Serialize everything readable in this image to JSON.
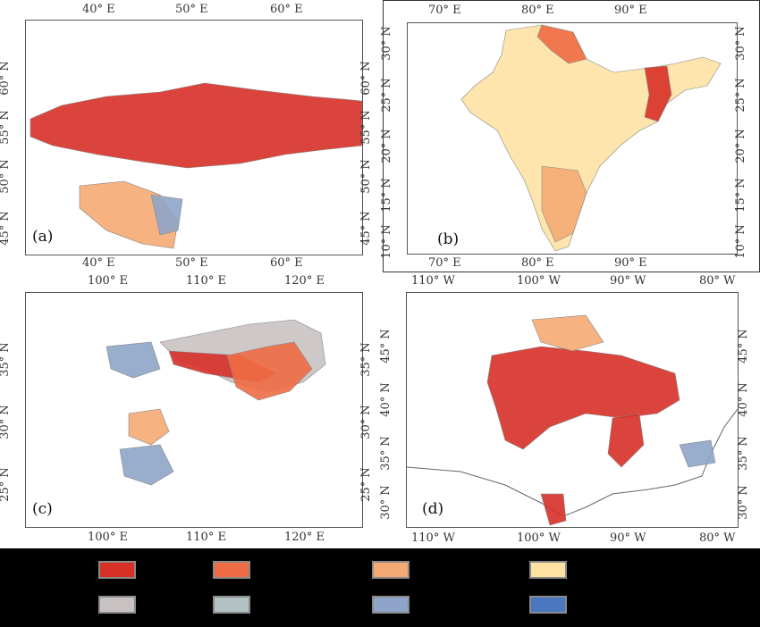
{
  "panels": [
    {
      "id": "a",
      "label": "(a)",
      "top_ticks": [
        "40° E",
        "50° E",
        "60° E"
      ],
      "bottom_ticks": [
        "40° E",
        "50° E",
        "60° E"
      ],
      "left_ticks": [
        "60° N",
        "55° N",
        "50° N",
        "45° N"
      ],
      "right_ticks": [
        "60° N",
        "55° N",
        "50° N",
        "45° N"
      ]
    },
    {
      "id": "b",
      "label": "(b)",
      "top_ticks": [
        "70° E",
        "80° E",
        "90° E"
      ],
      "bottom_ticks": [
        "70° E",
        "80° E",
        "90° E"
      ],
      "left_ticks": [
        "30° N",
        "25° N",
        "20° N",
        "15° N",
        "10° N"
      ],
      "right_ticks": [
        "30° N",
        "25° N",
        "20° N",
        "15° N",
        "10° N"
      ]
    },
    {
      "id": "c",
      "label": "(c)",
      "top_ticks": [
        "100° E",
        "110° E",
        "120° E"
      ],
      "bottom_ticks": [
        "100° E",
        "110° E",
        "120° E"
      ],
      "left_ticks": [
        "35° N",
        "30° N",
        "25° N"
      ],
      "right_ticks": [
        "35° N",
        "30° N",
        "25° N"
      ]
    },
    {
      "id": "d",
      "label": "(d)",
      "top_ticks": [
        "110° W",
        "100° W",
        "90° W",
        "80° W"
      ],
      "bottom_ticks": [
        "110° W",
        "100° W",
        "90° W",
        "80° W"
      ],
      "left_ticks": [
        "45° N",
        "40° N",
        "35° N",
        "30° N"
      ],
      "right_ticks": [
        "45° N",
        "40° N",
        "35° N",
        "30° N"
      ]
    }
  ],
  "legend_colors": [
    "#d73027",
    "#ef6b44",
    "#f5aa73",
    "#fde2a4",
    "#c9c2c2",
    "#b3c2c4",
    "#8ea4c8",
    "#4a78c0"
  ],
  "map_colors": {
    "red": "#d73027",
    "orange": "#ef6b44",
    "salmon": "#f5aa73",
    "cream": "#fde2a4",
    "grey": "#c9c2c2",
    "lightblue": "#8ea4c8",
    "blue": "#4a78c0"
  }
}
